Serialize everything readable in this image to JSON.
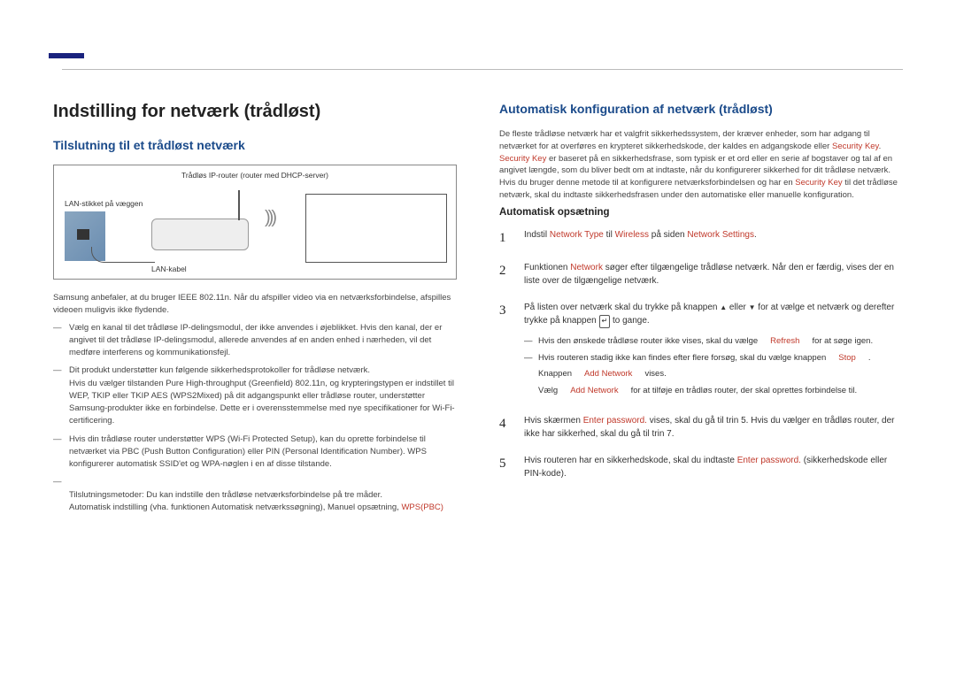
{
  "colors": {
    "brand_bar": "#1a237e",
    "blue_heading": "#1a4a8a",
    "red_emphasis": "#c0392b",
    "body_text": "#444444",
    "rule": "#bbbbbb"
  },
  "left": {
    "h1": "Indstilling for netværk (trådløst)",
    "h2": "Tilslutning til et trådløst netværk",
    "diagram": {
      "top": "Trådløs IP-router\n(router med DHCP-server)",
      "left": "LAN-stikket på væggen",
      "bottom": "LAN-kabel"
    },
    "intro": "Samsung anbefaler, at du bruger IEEE 802.11n. Når du afspiller video via en netværksforbindelse, afspilles videoen muligvis ikke flydende.",
    "bullets": [
      "Vælg en kanal til det trådløse IP-delingsmodul, der ikke anvendes i øjeblikket. Hvis den kanal, der er angivet til det trådløse IP-delingsmodul, allerede anvendes af en anden enhed i nærheden, vil det medføre interferens og kommunikationsfejl.",
      "Dit produkt understøtter kun følgende sikkerhedsprotokoller for trådløse netværk.\nHvis du vælger tilstanden Pure High-throughput (Greenfield) 802.11n, og krypteringstypen er indstillet til WEP, TKIP eller TKIP AES (WPS2Mixed) på dit adgangspunkt eller trådløse router, understøtter Samsung-produkter ikke en forbindelse. Dette er i overensstemmelse med nye specifikationer for Wi-Fi-certificering.",
      "Hvis din trådløse router understøtter WPS (Wi-Fi Protected Setup), kan du oprette forbindelse til netværket via PBC (Push Button Configuration) eller PIN (Personal Identification Number). WPS konfigurerer automatisk SSID'et og WPA-nøglen i en af disse tilstande.",
      "Tilslutningsmetoder: Du kan indstille den trådløse netværksforbindelse på tre måder.\nAutomatisk indstilling (vha. funktionen Automatisk netværkssøgning), Manuel opsætning, "
    ],
    "wps_pbc": "WPS(PBC)"
  },
  "right": {
    "h2": "Automatisk konfiguration af netværk (trådløst)",
    "intro_pre": "De fleste trådløse netværk har et valgfrit sikkerhedssystem, der kræver enheder, som har adgang til netværket for at overføres en krypteret sikkerhedskode, der kaldes en adgangskode eller ",
    "security_key1": "Security Key",
    "intro_mid": ". ",
    "security_key2": "Security Key",
    "intro_post1": " er baseret på en sikkerhedsfrase, som typisk er et ord eller en serie af bogstaver og tal af en angivet længde, som du bliver bedt om at indtaste, når du konfigurerer sikkerhed for dit trådløse netværk. Hvis du bruger denne metode til at konfigurere netværksforbindelsen og har en ",
    "security_key3": "Security Key",
    "intro_post2": " til det trådløse netværk, skal du indtaste sikkerhedsfrasen under den automatiske eller manuelle konfiguration.",
    "h3": "Automatisk opsætning",
    "steps": [
      {
        "num": "1",
        "pre": "Indstil ",
        "t1": "Network Type",
        "mid1": " til ",
        "t2": "Wireless",
        "mid2": " på siden ",
        "t3": "Network Settings",
        "post": "."
      },
      {
        "num": "2",
        "pre": "Funktionen ",
        "t1": "Network",
        "post": " søger efter tilgængelige trådløse netværk. Når den er færdig, vises der en liste over de tilgængelige netværk."
      },
      {
        "num": "3",
        "text1": "På listen over netværk skal du trykke på knappen ",
        "text2": " eller ",
        "text3": " for at vælge et netværk og derefter trykke på knappen ",
        "text4": " to gange.",
        "sub": [
          {
            "type": "dash",
            "pre": "Hvis den ønskede trådløse router ikke vises, skal du vælge ",
            "red": "Refresh",
            "post": " for at søge igen."
          },
          {
            "type": "dash",
            "pre": "Hvis routeren stadig ikke kan findes efter flere forsøg, skal du vælge knappen ",
            "red": "Stop",
            "post": "."
          },
          {
            "type": "nodash",
            "pre": "Knappen ",
            "red": "Add Network",
            "post": " vises."
          },
          {
            "type": "nodash",
            "pre": "Vælg ",
            "red": "Add Network",
            "post": " for at tilføje en trådløs router, der skal oprettes forbindelse til."
          }
        ]
      },
      {
        "num": "4",
        "pre": "Hvis skærmen ",
        "t1": "Enter password.",
        "post": " vises, skal du gå til trin 5. Hvis du vælger en trådløs router, der ikke har sikkerhed, skal du gå til trin 7."
      },
      {
        "num": "5",
        "pre": "Hvis routeren har en sikkerhedskode, skal du indtaste ",
        "t1": "Enter password.",
        "post": " (sikkerhedskode eller PIN-kode)."
      }
    ]
  }
}
